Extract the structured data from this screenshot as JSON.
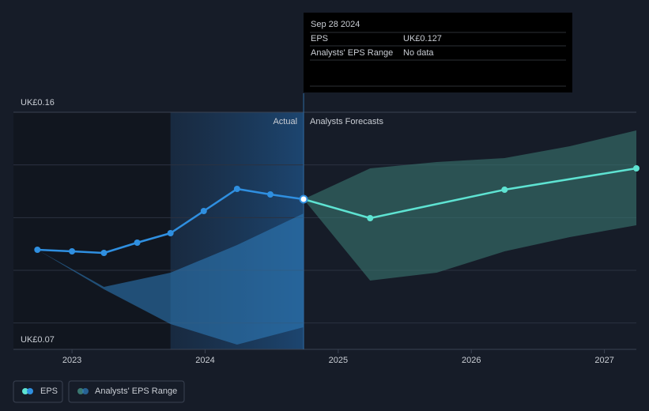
{
  "chart_data": {
    "type": "line",
    "xlim": [
      2022.56,
      2027.24
    ],
    "xticks": [
      2023,
      2024,
      2025,
      2026,
      2027
    ],
    "ylim": [
      0.07,
      0.16
    ],
    "yticks": [
      {
        "value": 0.16,
        "label": "UK£0.16"
      },
      {
        "value": 0.07,
        "label": "UK£0.07"
      }
    ],
    "ygrid": [
      0.14,
      0.12,
      0.1,
      0.08
    ],
    "grid": true,
    "actual_label": "Actual",
    "forecast_label": "Analysts Forecasts",
    "series": [
      {
        "name": "EPS",
        "color": "#2f8fe0",
        "forecast_color": "#5ee3d2",
        "x": [
          2022.74,
          2023.0,
          2023.24,
          2023.49,
          2023.74,
          2023.99,
          2024.24,
          2024.49,
          2024.74
        ],
        "values": [
          0.1078,
          0.1072,
          0.1066,
          0.1105,
          0.1141,
          0.1225,
          0.1309,
          0.1288,
          0.127
        ],
        "forecast_x": [
          2024.74,
          2025.24,
          2026.25,
          2027.24
        ],
        "forecast_values": [
          0.127,
          0.1198,
          0.1306,
          0.1387
        ]
      },
      {
        "name": "Analysts' EPS Range",
        "color": "#2f7fc0",
        "forecast_color": "#3a7770",
        "segments": [
          {
            "x": [
              2022.74,
              2023.24,
              2023.74,
              2024.24,
              2024.74
            ],
            "high": [
              0.1078,
              0.0937,
              0.0991,
              0.1096,
              0.1216
            ],
            "low": [
              0.1078,
              0.0928,
              0.0796,
              0.0718,
              0.0784
            ]
          },
          {
            "x": [
              2024.74,
              2025.24,
              2025.74,
              2026.25,
              2026.74,
              2027.24
            ],
            "high": [
              0.127,
              0.1387,
              0.1411,
              0.1426,
              0.1471,
              0.1531
            ],
            "low": [
              0.127,
              0.0961,
              0.0991,
              0.1072,
              0.1126,
              0.1171
            ]
          }
        ]
      }
    ],
    "tooltip": {
      "date": "Sep 28 2024",
      "rows": [
        {
          "label": "EPS",
          "value": "UK£0.127"
        },
        {
          "label": "Analysts' EPS Range",
          "value": "No data"
        }
      ]
    }
  }
}
